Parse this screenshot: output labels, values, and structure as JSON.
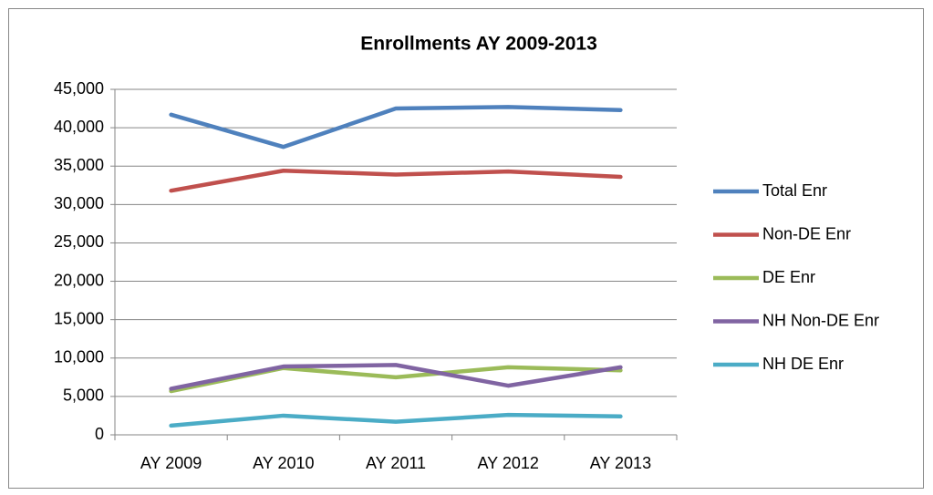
{
  "chart_data": {
    "type": "line",
    "title": "Enrollments AY 2009-2013",
    "categories": [
      "AY 2009",
      "AY 2010",
      "AY 2011",
      "AY 2012",
      "AY 2013"
    ],
    "series": [
      {
        "name": "Total Enr",
        "color": "#4f81bd",
        "values": [
          41700,
          37500,
          42500,
          42700,
          42300
        ]
      },
      {
        "name": "Non-DE Enr",
        "color": "#c0504d",
        "values": [
          31800,
          34400,
          33900,
          34300,
          33600
        ]
      },
      {
        "name": "DE Enr",
        "color": "#9bbb59",
        "values": [
          5700,
          8700,
          7500,
          8800,
          8400
        ]
      },
      {
        "name": "NH Non-DE Enr",
        "color": "#8064a2",
        "values": [
          6000,
          8900,
          9100,
          6400,
          8800
        ]
      },
      {
        "name": "NH DE Enr",
        "color": "#4bacc6",
        "values": [
          1200,
          2500,
          1700,
          2600,
          2400
        ]
      }
    ],
    "ylim": [
      0,
      45000
    ],
    "yticks": [
      0,
      {
        "value": 5000,
        "label": "5,000"
      },
      {
        "value": 10000,
        "label": "10,000"
      },
      {
        "value": 15000,
        "label": "15,000"
      },
      {
        "value": 20000,
        "label": "20,000"
      },
      {
        "value": 25000,
        "label": "25,000"
      },
      {
        "value": 30000,
        "label": "30,000"
      },
      {
        "value": 35000,
        "label": "35,000"
      },
      {
        "value": 40000,
        "label": "40,000"
      },
      {
        "value": 45000,
        "label": "45,000"
      }
    ],
    "grid": true,
    "legend": "right"
  }
}
